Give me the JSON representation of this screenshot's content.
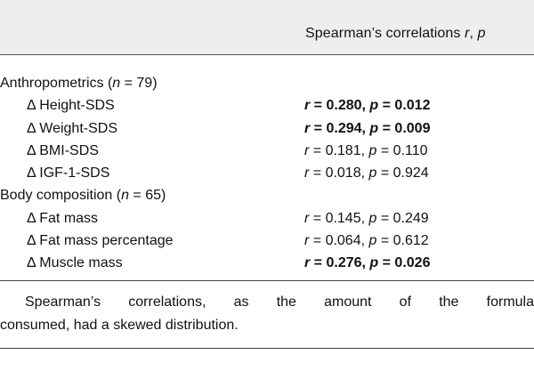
{
  "header": {
    "col_prefix": "Spearman’s correlations ",
    "col_r": "r",
    "col_sep": ", ",
    "col_p": "p"
  },
  "rows": [
    {
      "label": "Anthropometrics (",
      "n_symbol": "n",
      "n_rest": " = 79)",
      "section": true
    },
    {
      "label": "Δ Height-SDS",
      "r": "0.280",
      "p": "0.012",
      "bold": true
    },
    {
      "label": "Δ Weight-SDS",
      "r": "0.294",
      "p": "0.009",
      "bold": true
    },
    {
      "label": "Δ BMI-SDS",
      "r": "0.181",
      "p": "0.110",
      "bold": false
    },
    {
      "label": "Δ IGF-1-SDS",
      "r": "0.018",
      "p": "0.924",
      "bold": false
    },
    {
      "label": "Body composition (",
      "n_symbol": "n",
      "n_rest": " = 65)",
      "section": true
    },
    {
      "label": "Δ Fat mass",
      "r": "0.145",
      "p": "0.249",
      "bold": false
    },
    {
      "label": "Δ Fat mass percentage",
      "r": "0.064",
      "p": "0.612",
      "bold": false
    },
    {
      "label": "Δ Muscle mass",
      "r": "0.276",
      "p": "0.026",
      "bold": true
    }
  ],
  "footnote": {
    "line1": "Spearman’s correlations, as the amount of the formula",
    "line2": "consumed, had a skewed distribution."
  }
}
